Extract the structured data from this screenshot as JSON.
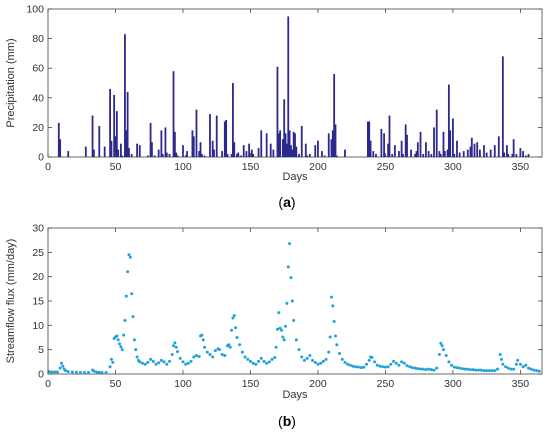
{
  "chart_data": [
    {
      "type": "bar",
      "panel_label": "(a)",
      "panel_letter": "a",
      "xlabel": "Days",
      "ylabel": "Precipitation (mm)",
      "xlim": [
        0,
        366
      ],
      "ylim": [
        0,
        100
      ],
      "xticks": [
        0,
        50,
        100,
        150,
        200,
        250,
        300,
        350
      ],
      "yticks": [
        0,
        20,
        40,
        60,
        80,
        100
      ],
      "color": "#2b2a8c",
      "x": [
        8,
        9,
        15,
        28,
        33,
        34,
        38,
        42,
        46,
        47,
        49,
        50,
        51,
        52,
        54,
        55,
        57,
        58,
        59,
        60,
        62,
        66,
        68,
        74,
        76,
        77,
        79,
        82,
        84,
        85,
        87,
        88,
        90,
        93,
        94,
        95,
        96,
        100,
        102,
        103,
        107,
        108,
        110,
        112,
        113,
        114,
        116,
        120,
        122,
        123,
        125,
        129,
        131,
        132,
        133,
        136,
        137,
        138,
        140,
        141,
        143,
        145,
        147,
        149,
        151,
        152,
        156,
        158,
        162,
        165,
        167,
        170,
        171,
        172,
        174,
        175,
        176,
        177,
        178,
        179,
        180,
        181,
        182,
        183,
        184,
        186,
        188,
        191,
        192,
        194,
        198,
        200,
        203,
        205,
        208,
        210,
        211,
        212,
        213,
        214,
        220,
        237,
        238,
        239,
        241,
        243,
        247,
        249,
        250,
        252,
        253,
        255,
        257,
        260,
        262,
        263,
        265,
        266,
        269,
        272,
        273,
        274,
        276,
        278,
        280,
        282,
        284,
        286,
        288,
        290,
        291,
        293,
        294,
        296,
        297,
        298,
        300,
        301,
        303,
        305,
        308,
        311,
        313,
        314,
        316,
        318,
        320,
        323,
        325,
        328,
        331,
        334,
        337,
        338,
        340,
        341,
        344,
        345,
        347,
        350,
        352,
        354,
        356
      ],
      "values": [
        23,
        12,
        4,
        7,
        28,
        5,
        21,
        7,
        46,
        11,
        42,
        14,
        31,
        5,
        9,
        1,
        83,
        18,
        44,
        6,
        2,
        9,
        8,
        1,
        23,
        10,
        1,
        5,
        18,
        2,
        20,
        3,
        2,
        58,
        17,
        3,
        1,
        8,
        1,
        4,
        18,
        14,
        32,
        4,
        10,
        2,
        1,
        29,
        11,
        5,
        28,
        4,
        24,
        25,
        2,
        2,
        50,
        10,
        2,
        3,
        1,
        8,
        4,
        9,
        5,
        2,
        6,
        18,
        16,
        9,
        5,
        61,
        16,
        18,
        12,
        39,
        16,
        9,
        95,
        18,
        8,
        5,
        17,
        16,
        7,
        2,
        21,
        9,
        1,
        2,
        8,
        11,
        4,
        1,
        16,
        12,
        18,
        56,
        22,
        1,
        5,
        24,
        24,
        11,
        4,
        2,
        19,
        16,
        1,
        9,
        28,
        2,
        8,
        4,
        11,
        2,
        22,
        15,
        5,
        2,
        4,
        10,
        17,
        2,
        10,
        4,
        2,
        20,
        32,
        4,
        2,
        17,
        4,
        5,
        49,
        18,
        26,
        2,
        11,
        3,
        4,
        5,
        7,
        13,
        9,
        10,
        5,
        8,
        3,
        5,
        8,
        14,
        68,
        3,
        8,
        2,
        2,
        12,
        2,
        6,
        4,
        1,
        2
      ]
    },
    {
      "type": "scatter",
      "panel_label": "(b)",
      "panel_letter": "b",
      "xlabel": "Days",
      "ylabel": "Streamflow flux (mm/day)",
      "xlim": [
        0,
        366
      ],
      "ylim": [
        0,
        30
      ],
      "xticks": [
        0,
        50,
        100,
        150,
        200,
        250,
        300,
        350
      ],
      "yticks": [
        0,
        5,
        10,
        15,
        20,
        25,
        30
      ],
      "color": "#1fa2d8",
      "points": [
        [
          1,
          0.5
        ],
        [
          3,
          0.4
        ],
        [
          5,
          0.4
        ],
        [
          7,
          0.4
        ],
        [
          9,
          1.2
        ],
        [
          10,
          2.2
        ],
        [
          11,
          1.6
        ],
        [
          12,
          1.0
        ],
        [
          13,
          0.7
        ],
        [
          15,
          0.5
        ],
        [
          18,
          0.4
        ],
        [
          21,
          0.35
        ],
        [
          24,
          0.3
        ],
        [
          27,
          0.3
        ],
        [
          30,
          0.3
        ],
        [
          33,
          0.8
        ],
        [
          34,
          0.6
        ],
        [
          36,
          0.4
        ],
        [
          38,
          0.3
        ],
        [
          40,
          0.3
        ],
        [
          43,
          0.3
        ],
        [
          46,
          1.5
        ],
        [
          47,
          3.0
        ],
        [
          48,
          2.4
        ],
        [
          49,
          7.3
        ],
        [
          50,
          7.6
        ],
        [
          51,
          7.8
        ],
        [
          52,
          7.0
        ],
        [
          53,
          6.2
        ],
        [
          54,
          5.6
        ],
        [
          55,
          5.0
        ],
        [
          56,
          8.0
        ],
        [
          57,
          11.0
        ],
        [
          58,
          16.0
        ],
        [
          59,
          21.0
        ],
        [
          60,
          24.5
        ],
        [
          61,
          24.0
        ],
        [
          62,
          16.5
        ],
        [
          63,
          11.8
        ],
        [
          64,
          7.0
        ],
        [
          65,
          5.0
        ],
        [
          66,
          3.5
        ],
        [
          67,
          2.8
        ],
        [
          68,
          2.5
        ],
        [
          70,
          2.2
        ],
        [
          72,
          2.0
        ],
        [
          74,
          2.4
        ],
        [
          76,
          3.0
        ],
        [
          78,
          2.6
        ],
        [
          80,
          2.0
        ],
        [
          82,
          2.3
        ],
        [
          84,
          2.8
        ],
        [
          86,
          2.5
        ],
        [
          88,
          2.0
        ],
        [
          90,
          2.6
        ],
        [
          92,
          4.0
        ],
        [
          93,
          5.8
        ],
        [
          94,
          6.4
        ],
        [
          95,
          5.5
        ],
        [
          96,
          4.6
        ],
        [
          98,
          3.2
        ],
        [
          100,
          2.5
        ],
        [
          102,
          2.0
        ],
        [
          104,
          2.2
        ],
        [
          106,
          2.6
        ],
        [
          108,
          3.5
        ],
        [
          110,
          3.8
        ],
        [
          112,
          3.6
        ],
        [
          113,
          7.8
        ],
        [
          114,
          8.0
        ],
        [
          115,
          7.0
        ],
        [
          116,
          5.5
        ],
        [
          118,
          4.5
        ],
        [
          120,
          4.0
        ],
        [
          122,
          3.5
        ],
        [
          124,
          4.8
        ],
        [
          126,
          5.2
        ],
        [
          127,
          5.0
        ],
        [
          129,
          4.0
        ],
        [
          131,
          3.8
        ],
        [
          133,
          5.8
        ],
        [
          134,
          6.0
        ],
        [
          135,
          5.5
        ],
        [
          136,
          9.0
        ],
        [
          137,
          11.5
        ],
        [
          138,
          12.0
        ],
        [
          139,
          9.5
        ],
        [
          140,
          7.5
        ],
        [
          142,
          6.0
        ],
        [
          144,
          4.5
        ],
        [
          146,
          3.5
        ],
        [
          148,
          3.0
        ],
        [
          150,
          2.6
        ],
        [
          152,
          2.2
        ],
        [
          154,
          2.0
        ],
        [
          156,
          2.6
        ],
        [
          158,
          3.2
        ],
        [
          160,
          2.6
        ],
        [
          162,
          2.2
        ],
        [
          164,
          2.5
        ],
        [
          166,
          3.0
        ],
        [
          168,
          3.4
        ],
        [
          169,
          5.5
        ],
        [
          170,
          9.2
        ],
        [
          171,
          12.6
        ],
        [
          172,
          9.4
        ],
        [
          173,
          9.0
        ],
        [
          174,
          7.6
        ],
        [
          175,
          7.0
        ],
        [
          176,
          9.8
        ],
        [
          177,
          14.5
        ],
        [
          178,
          22.0
        ],
        [
          179,
          26.8
        ],
        [
          180,
          19.8
        ],
        [
          181,
          15.0
        ],
        [
          182,
          11.0
        ],
        [
          184,
          7.0
        ],
        [
          186,
          5.0
        ],
        [
          188,
          3.5
        ],
        [
          190,
          2.8
        ],
        [
          192,
          3.2
        ],
        [
          194,
          3.8
        ],
        [
          196,
          2.8
        ],
        [
          198,
          2.4
        ],
        [
          200,
          2.0
        ],
        [
          202,
          2.2
        ],
        [
          204,
          2.6
        ],
        [
          206,
          3.0
        ],
        [
          208,
          4.5
        ],
        [
          209,
          7.6
        ],
        [
          210,
          15.8
        ],
        [
          211,
          14.0
        ],
        [
          212,
          10.8
        ],
        [
          213,
          7.8
        ],
        [
          214,
          6.0
        ],
        [
          216,
          4.2
        ],
        [
          218,
          3.0
        ],
        [
          220,
          2.4
        ],
        [
          222,
          2.0
        ],
        [
          224,
          1.8
        ],
        [
          226,
          1.6
        ],
        [
          228,
          1.5
        ],
        [
          230,
          1.4
        ],
        [
          232,
          1.3
        ],
        [
          234,
          1.4
        ],
        [
          236,
          2.0
        ],
        [
          238,
          2.8
        ],
        [
          239,
          3.5
        ],
        [
          240,
          3.4
        ],
        [
          242,
          2.5
        ],
        [
          244,
          1.8
        ],
        [
          246,
          1.6
        ],
        [
          248,
          1.5
        ],
        [
          250,
          1.4
        ],
        [
          252,
          1.5
        ],
        [
          254,
          2.0
        ],
        [
          256,
          2.6
        ],
        [
          258,
          2.2
        ],
        [
          260,
          1.8
        ],
        [
          262,
          2.5
        ],
        [
          264,
          2.2
        ],
        [
          266,
          1.7
        ],
        [
          268,
          1.5
        ],
        [
          270,
          1.3
        ],
        [
          272,
          1.2
        ],
        [
          274,
          1.1
        ],
        [
          276,
          1.0
        ],
        [
          278,
          1.0
        ],
        [
          280,
          0.9
        ],
        [
          282,
          1.0
        ],
        [
          284,
          0.9
        ],
        [
          286,
          0.8
        ],
        [
          288,
          1.2
        ],
        [
          290,
          4.0
        ],
        [
          291,
          6.3
        ],
        [
          292,
          5.8
        ],
        [
          293,
          5.0
        ],
        [
          295,
          3.8
        ],
        [
          297,
          2.5
        ],
        [
          299,
          1.8
        ],
        [
          301,
          1.4
        ],
        [
          303,
          1.3
        ],
        [
          305,
          1.2
        ],
        [
          307,
          1.1
        ],
        [
          309,
          1.0
        ],
        [
          311,
          1.0
        ],
        [
          313,
          0.9
        ],
        [
          315,
          0.9
        ],
        [
          317,
          0.8
        ],
        [
          319,
          0.8
        ],
        [
          321,
          0.8
        ],
        [
          323,
          0.7
        ],
        [
          325,
          0.7
        ],
        [
          327,
          0.7
        ],
        [
          329,
          0.7
        ],
        [
          331,
          0.7
        ],
        [
          333,
          1.0
        ],
        [
          335,
          4.0
        ],
        [
          336,
          3.0
        ],
        [
          337,
          2.0
        ],
        [
          339,
          1.5
        ],
        [
          341,
          1.2
        ],
        [
          343,
          1.0
        ],
        [
          345,
          1.0
        ],
        [
          347,
          2.0
        ],
        [
          348,
          2.8
        ],
        [
          350,
          2.0
        ],
        [
          352,
          1.5
        ],
        [
          354,
          1.8
        ],
        [
          356,
          1.2
        ],
        [
          358,
          1.0
        ],
        [
          360,
          0.8
        ],
        [
          362,
          0.7
        ],
        [
          364,
          0.6
        ]
      ]
    }
  ]
}
